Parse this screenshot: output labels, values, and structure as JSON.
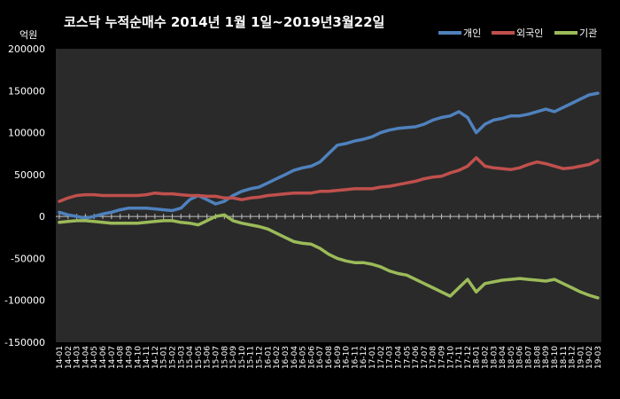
{
  "chart_data": {
    "type": "line",
    "title": "코스닥 누적순매수 2014년 1월 1일~2019년3월22일",
    "unit_label": "억원",
    "ylim": [
      -150000,
      200000
    ],
    "yticks": [
      200000,
      150000,
      100000,
      50000,
      0,
      -50000,
      -100000,
      -150000
    ],
    "grid": false,
    "legend_position": "top-right",
    "x": [
      "14-01",
      "14-02",
      "14-03",
      "14-04",
      "14-05",
      "14-06",
      "14-07",
      "14-08",
      "14-09",
      "14-10",
      "14-11",
      "14-12",
      "15-01",
      "15-02",
      "15-03",
      "15-04",
      "15-05",
      "15-06",
      "15-07",
      "15-08",
      "15-09",
      "15-10",
      "15-11",
      "15-12",
      "16-01",
      "16-02",
      "16-03",
      "16-04",
      "16-05",
      "16-06",
      "16-07",
      "16-08",
      "16-09",
      "16-10",
      "16-11",
      "16-12",
      "17-01",
      "17-02",
      "17-03",
      "17-04",
      "17-05",
      "17-06",
      "17-07",
      "17-08",
      "17-09",
      "17-10",
      "17-11",
      "17-12",
      "18-01",
      "18-02",
      "18-03",
      "18-04",
      "18-05",
      "18-06",
      "18-07",
      "18-08",
      "18-09",
      "18-10",
      "18-11",
      "18-12",
      "19-01",
      "19-02",
      "19-03"
    ],
    "series": [
      {
        "name": "개인",
        "color": "#4f81bd",
        "values": [
          5000,
          2000,
          0,
          -2000,
          0,
          3000,
          5000,
          8000,
          10000,
          10000,
          10000,
          9000,
          8000,
          7000,
          10000,
          20000,
          25000,
          20000,
          15000,
          18000,
          25000,
          30000,
          33000,
          35000,
          40000,
          45000,
          50000,
          55000,
          58000,
          60000,
          65000,
          75000,
          85000,
          87000,
          90000,
          92000,
          95000,
          100000,
          103000,
          105000,
          106000,
          107000,
          110000,
          115000,
          118000,
          120000,
          125000,
          118000,
          100000,
          110000,
          115000,
          117000,
          120000,
          120000,
          122000,
          125000,
          128000,
          125000,
          130000,
          135000,
          140000,
          145000,
          147000
        ]
      },
      {
        "name": "외국인",
        "color": "#c0504d",
        "values": [
          18000,
          22000,
          25000,
          26000,
          26000,
          25000,
          25000,
          25000,
          25000,
          25000,
          26000,
          28000,
          27000,
          27000,
          26000,
          25000,
          25000,
          24000,
          24000,
          22000,
          22000,
          20000,
          22000,
          23000,
          25000,
          26000,
          27000,
          28000,
          28000,
          28000,
          30000,
          30000,
          31000,
          32000,
          33000,
          33000,
          33000,
          35000,
          36000,
          38000,
          40000,
          42000,
          45000,
          47000,
          48000,
          52000,
          55000,
          60000,
          70000,
          60000,
          58000,
          57000,
          56000,
          58000,
          62000,
          65000,
          63000,
          60000,
          57000,
          58000,
          60000,
          62000,
          67000
        ]
      },
      {
        "name": "기관",
        "color": "#9bbb59",
        "values": [
          -7000,
          -6000,
          -5000,
          -5000,
          -6000,
          -7000,
          -8000,
          -8000,
          -8000,
          -8000,
          -7000,
          -6000,
          -5000,
          -5000,
          -7000,
          -8000,
          -10000,
          -5000,
          0,
          2000,
          -5000,
          -8000,
          -10000,
          -12000,
          -15000,
          -20000,
          -25000,
          -30000,
          -32000,
          -33000,
          -38000,
          -45000,
          -50000,
          -53000,
          -55000,
          -55000,
          -57000,
          -60000,
          -65000,
          -68000,
          -70000,
          -75000,
          -80000,
          -85000,
          -90000,
          -95000,
          -85000,
          -75000,
          -90000,
          -80000,
          -78000,
          -76000,
          -75000,
          -74000,
          -75000,
          -76000,
          -77000,
          -75000,
          -80000,
          -85000,
          -90000,
          -94000,
          -97000
        ]
      }
    ]
  }
}
